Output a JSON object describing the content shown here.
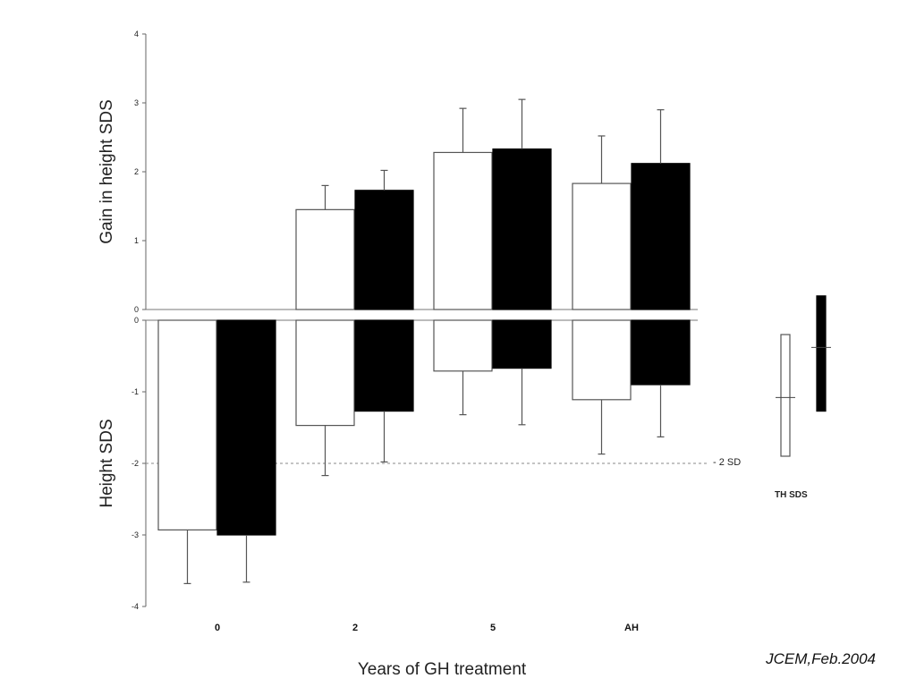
{
  "chart_data": [
    {
      "type": "bar",
      "panel": "top",
      "ylabel": "Gain in height SDS",
      "ylim": [
        0,
        4
      ],
      "yticks": [
        "4",
        "3",
        "2",
        "1",
        "0"
      ],
      "categories": [
        "2",
        "5",
        "AH"
      ],
      "series": [
        {
          "fill": "white",
          "values": [
            1.45,
            2.28,
            1.83
          ],
          "err_high": [
            1.8,
            2.92,
            2.52
          ]
        },
        {
          "fill": "black",
          "values": [
            1.73,
            2.33,
            2.12
          ],
          "err_high": [
            2.02,
            3.05,
            2.9
          ]
        }
      ]
    },
    {
      "type": "bar",
      "panel": "bottom",
      "xlabel": "Years of GH treatment",
      "ylabel": "Height SDS",
      "ylim": [
        -4,
        0
      ],
      "yticks": [
        "0",
        "-1",
        "-2",
        "-3",
        "-4"
      ],
      "categories": [
        "0",
        "2",
        "5",
        "AH"
      ],
      "reference_line": {
        "value": -2,
        "label": "- 2 SD"
      },
      "series": [
        {
          "fill": "white",
          "values": [
            -2.93,
            -1.47,
            -0.71,
            -1.11
          ],
          "err_low": [
            -3.68,
            -2.17,
            -1.32,
            -1.87
          ]
        },
        {
          "fill": "black",
          "values": [
            -3.0,
            -1.27,
            -0.67,
            -0.9
          ],
          "err_low": [
            -3.66,
            -1.98,
            -1.46,
            -1.63
          ]
        }
      ],
      "target_height": {
        "label": "TH SDS",
        "series": [
          {
            "fill": "white",
            "top": -0.2,
            "bottom": -1.9,
            "mean": -1.08
          },
          {
            "fill": "black",
            "top": 0.34,
            "bottom": -1.27,
            "mean": -0.38
          }
        ]
      }
    }
  ],
  "citation": "JCEM,Feb.2004"
}
